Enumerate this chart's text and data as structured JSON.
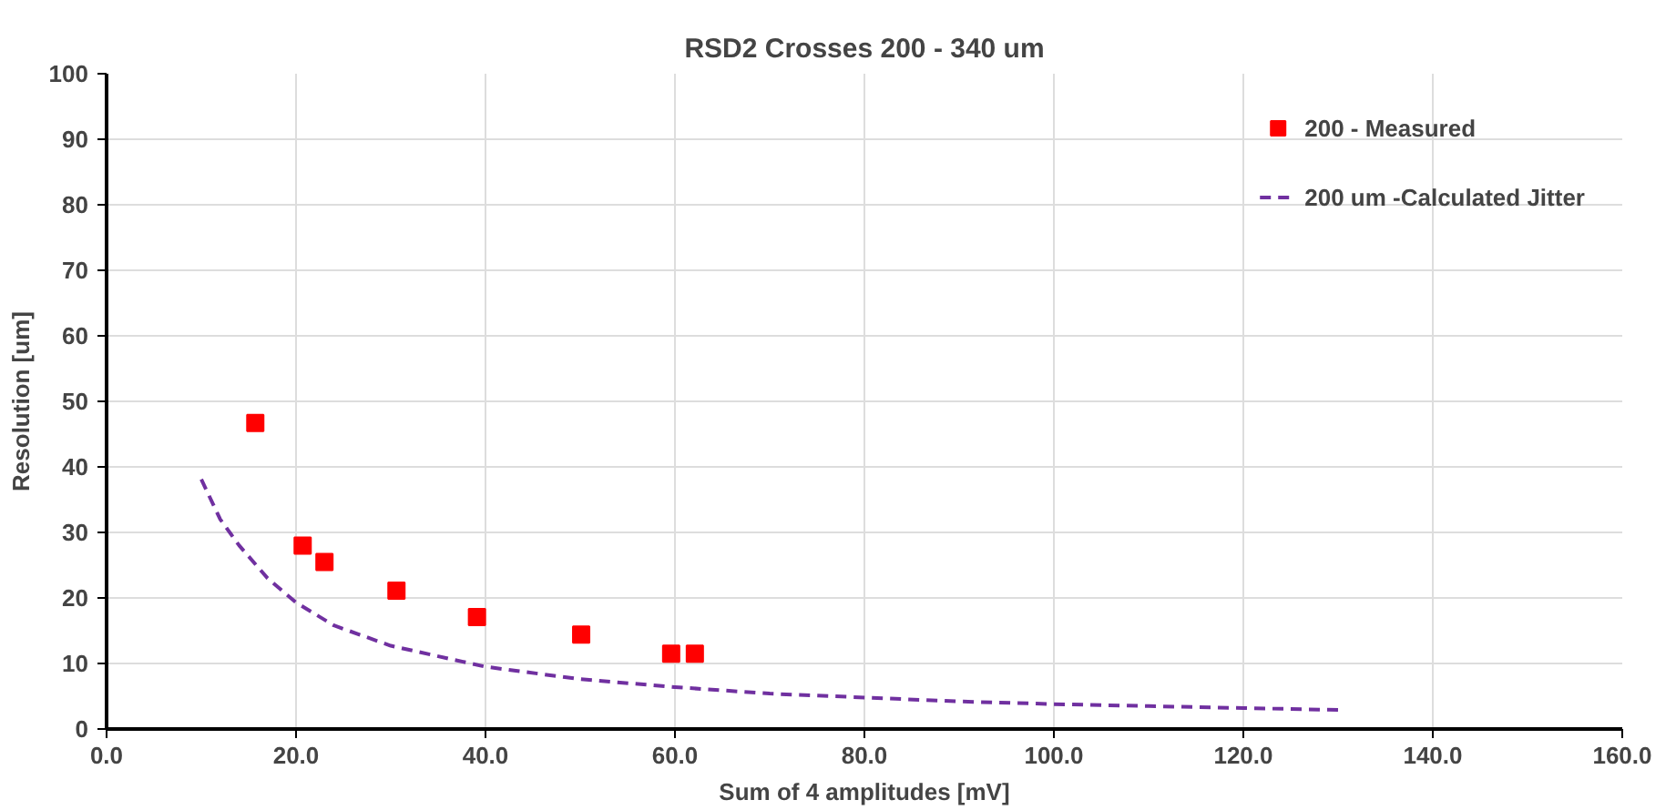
{
  "chart_data": {
    "type": "scatter",
    "title": "RSD2 Crosses 200 - 340 um",
    "xlabel": "Sum of 4 amplitudes [mV]",
    "ylabel": "Resolution [um]",
    "xlim": [
      0,
      160
    ],
    "xticks": [
      {
        "value": 0,
        "label": "0.0"
      },
      {
        "value": 20,
        "label": "20.0"
      },
      {
        "value": 40,
        "label": "40.0"
      },
      {
        "value": 60,
        "label": "60.0"
      },
      {
        "value": 80,
        "label": "80.0"
      },
      {
        "value": 100,
        "label": "100.0"
      },
      {
        "value": 120,
        "label": "120.0"
      },
      {
        "value": 140,
        "label": "140.0"
      },
      {
        "value": 160,
        "label": "160.0"
      }
    ],
    "ylim": [
      0,
      100
    ],
    "yticks": [
      0,
      10,
      20,
      30,
      40,
      50,
      60,
      70,
      80,
      90,
      100
    ],
    "grid": true,
    "legend": "top right",
    "series": [
      {
        "name": "200 - Measured",
        "marker": "square",
        "color": "#ff0000",
        "x": [
          15.7,
          20.7,
          23.0,
          30.6,
          39.1,
          50.1,
          59.6,
          62.1
        ],
        "values": [
          46.7,
          28.0,
          25.5,
          21.1,
          17.1,
          14.4,
          11.5,
          11.5
        ]
      },
      {
        "name": "200 um -Calculated Jitter",
        "type": "line",
        "line_style": "dashed",
        "color": "#7030a0",
        "x": [
          10,
          12,
          14,
          17,
          20,
          24,
          30,
          40,
          50,
          60,
          70,
          80,
          90,
          100,
          110,
          120,
          130
        ],
        "values": [
          38.1,
          32,
          28,
          23,
          19.3,
          15.8,
          12.7,
          9.5,
          7.6,
          6.4,
          5.4,
          4.8,
          4.2,
          3.8,
          3.5,
          3.2,
          2.9
        ]
      }
    ]
  }
}
